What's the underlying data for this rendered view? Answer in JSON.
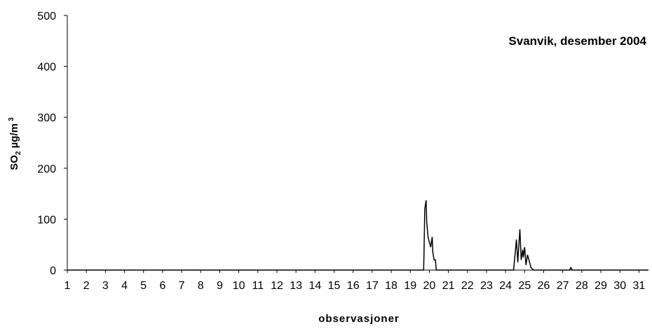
{
  "chart_data": {
    "type": "line",
    "annotation": "Svanvik, desember 2004",
    "xlabel": "observasjoner",
    "ylabel": {
      "main": "SO",
      "sub": "2",
      "unit": " µg/m",
      "sup": "3"
    },
    "x": [
      1,
      19.7,
      19.72,
      19.76,
      19.83,
      19.86,
      19.93,
      20.0,
      20.07,
      20.15,
      20.18,
      20.25,
      20.32,
      20.36,
      20.41,
      24.42,
      24.57,
      24.64,
      24.75,
      24.82,
      24.9,
      24.93,
      25.0,
      25.07,
      25.15,
      25.26,
      25.33,
      25.47,
      27.36,
      27.43,
      27.5,
      31.5
    ],
    "values": [
      0,
      0,
      35,
      120,
      137,
      95,
      65,
      55,
      45,
      65,
      35,
      20,
      20,
      0,
      0,
      0,
      60,
      15,
      80,
      20,
      40,
      25,
      45,
      10,
      30,
      15,
      5,
      0,
      0,
      5,
      0,
      0
    ],
    "color": "#000000",
    "xlim": [
      1,
      31.5
    ],
    "xticks": [
      1,
      2,
      3,
      4,
      5,
      6,
      7,
      8,
      9,
      10,
      11,
      12,
      13,
      14,
      15,
      16,
      17,
      18,
      19,
      20,
      21,
      22,
      23,
      24,
      25,
      26,
      27,
      28,
      29,
      30,
      31
    ],
    "ylim": [
      0,
      500
    ],
    "yticks": [
      0,
      100,
      200,
      300,
      400,
      500
    ],
    "grid": false
  }
}
